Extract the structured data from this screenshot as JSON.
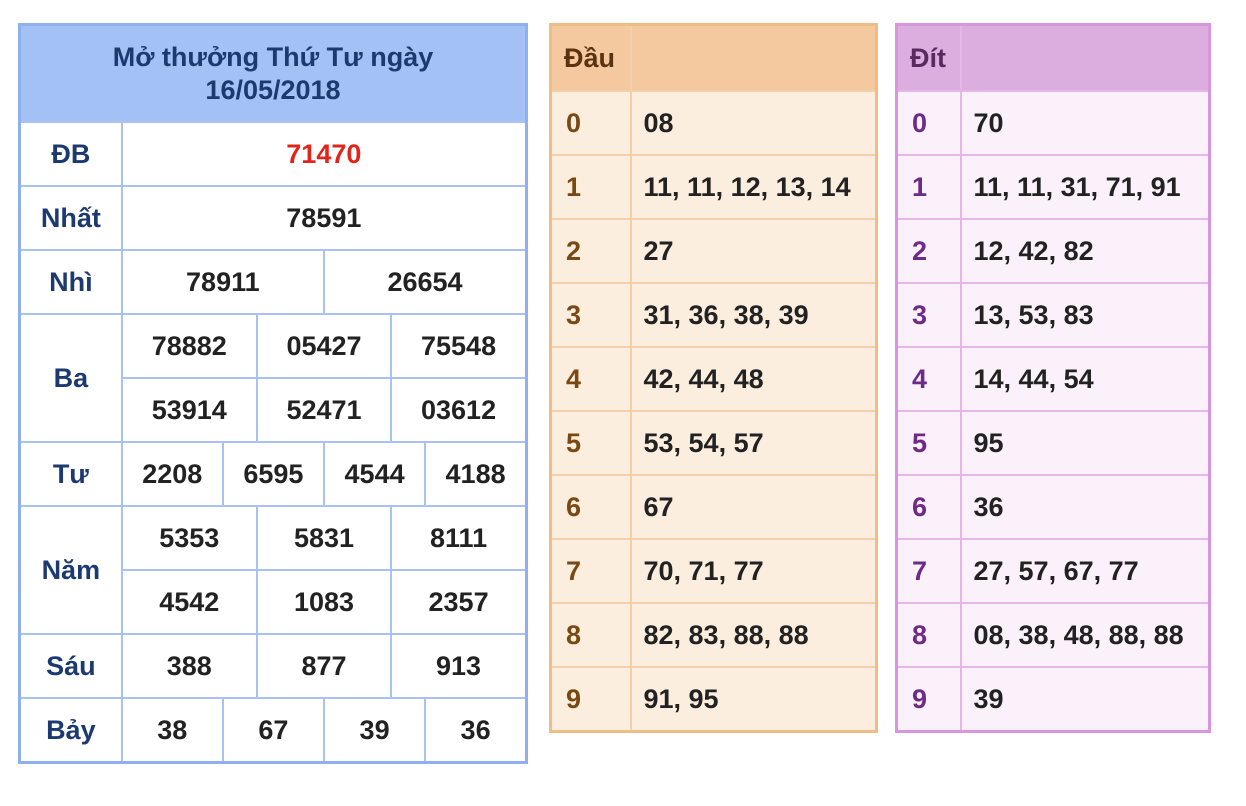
{
  "results": {
    "title_line1": "Mở thưởng Thứ Tư ngày",
    "title_line2": "16/05/2018",
    "prizes": [
      {
        "label": "ĐB",
        "values": [
          "71470"
        ]
      },
      {
        "label": "Nhất",
        "values": [
          "78591"
        ]
      },
      {
        "label": "Nhì",
        "values": [
          "78911",
          "26654"
        ]
      },
      {
        "label": "Ba",
        "values": [
          "78882",
          "05427",
          "75548",
          "53914",
          "52471",
          "03612"
        ]
      },
      {
        "label": "Tư",
        "values": [
          "2208",
          "6595",
          "4544",
          "4188"
        ]
      },
      {
        "label": "Năm",
        "values": [
          "5353",
          "5831",
          "8111",
          "4542",
          "1083",
          "2357"
        ]
      },
      {
        "label": "Sáu",
        "values": [
          "388",
          "877",
          "913"
        ]
      },
      {
        "label": "Bảy",
        "values": [
          "38",
          "67",
          "39",
          "36"
        ]
      }
    ]
  },
  "dau": {
    "header": "Đầu",
    "rows": [
      {
        "k": "0",
        "v": "08"
      },
      {
        "k": "1",
        "v": "11, 11, 12, 13, 14"
      },
      {
        "k": "2",
        "v": "27"
      },
      {
        "k": "3",
        "v": "31, 36, 38, 39"
      },
      {
        "k": "4",
        "v": "42, 44, 48"
      },
      {
        "k": "5",
        "v": "53, 54, 57"
      },
      {
        "k": "6",
        "v": "67"
      },
      {
        "k": "7",
        "v": "70, 71, 77"
      },
      {
        "k": "8",
        "v": "82, 83, 88, 88"
      },
      {
        "k": "9",
        "v": "91, 95"
      }
    ]
  },
  "dit": {
    "header": "Đít",
    "rows": [
      {
        "k": "0",
        "v": "70"
      },
      {
        "k": "1",
        "v": "11, 11, 31, 71, 91"
      },
      {
        "k": "2",
        "v": "12, 42, 82"
      },
      {
        "k": "3",
        "v": "13, 53, 83"
      },
      {
        "k": "4",
        "v": "14, 44, 54"
      },
      {
        "k": "5",
        "v": "95"
      },
      {
        "k": "6",
        "v": "36"
      },
      {
        "k": "7",
        "v": "27, 57, 67, 77"
      },
      {
        "k": "8",
        "v": "08, 38, 48, 88, 88"
      },
      {
        "k": "9",
        "v": "39"
      }
    ]
  }
}
